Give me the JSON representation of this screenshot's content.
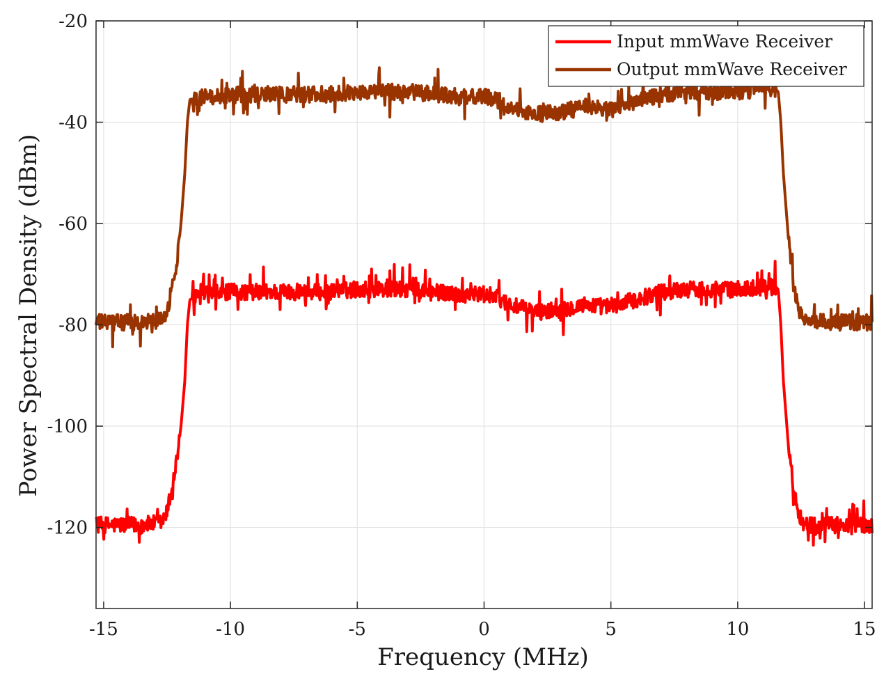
{
  "chart_data": {
    "type": "line",
    "title": "",
    "xlabel": "Frequency (MHz)",
    "ylabel": "Power Spectral Density (dBm)",
    "xlim": [
      -15.3,
      15.3
    ],
    "ylim": [
      -136,
      -20
    ],
    "xticks": [
      -15,
      -10,
      -5,
      0,
      5,
      10,
      15
    ],
    "xtick_labels": [
      "-15",
      "-10",
      "-5",
      "0",
      "5",
      "10",
      "15"
    ],
    "yticks": [
      -120,
      -100,
      -80,
      -60,
      -40,
      -20
    ],
    "ytick_labels": [
      "-120",
      "-100",
      "-80",
      "-60",
      "-40",
      "-20"
    ],
    "grid": true,
    "legend_position": "top-right",
    "series": [
      {
        "name": "Input mmWave Receiver",
        "color": "#ff0000",
        "x": [
          -15.3,
          -14.5,
          -13.5,
          -12.7,
          -12.5,
          -12.3,
          -12.1,
          -11.95,
          -11.8,
          -11.7,
          -11.6,
          -11,
          -10,
          -9,
          -8,
          -7,
          -6,
          -5,
          -4,
          -3,
          -2,
          -1,
          0,
          0.5,
          1,
          2,
          3,
          4,
          5,
          6,
          7,
          8,
          9,
          10,
          11,
          11.5,
          11.6,
          11.7,
          11.8,
          12.0,
          12.2,
          12.4,
          12.6,
          13.5,
          14.5,
          15.3
        ],
        "values": [
          -119.5,
          -119.5,
          -119.5,
          -119,
          -117,
          -112,
          -106,
          -100,
          -91,
          -80,
          -75,
          -74,
          -73.5,
          -73.5,
          -73.5,
          -73.5,
          -73.5,
          -73,
          -73,
          -73,
          -73.5,
          -74,
          -74,
          -74.5,
          -76,
          -77.5,
          -77,
          -76,
          -76.5,
          -75,
          -73.5,
          -73,
          -73,
          -73,
          -72.5,
          -72.5,
          -73,
          -80,
          -91,
          -104,
          -112,
          -117,
          -119.5,
          -119.5,
          -119.5,
          -119.5
        ]
      },
      {
        "name": "Output mmWave Receiver",
        "color": "#993300",
        "x": [
          -15.3,
          -14.5,
          -13.5,
          -12.7,
          -12.5,
          -12.3,
          -12.1,
          -11.95,
          -11.8,
          -11.7,
          -11.6,
          -11,
          -10,
          -9,
          -8,
          -7,
          -6,
          -5,
          -4,
          -3,
          -2,
          -1,
          0,
          0.5,
          1,
          2,
          3,
          4,
          5,
          6,
          7,
          8,
          9,
          10,
          11,
          11.5,
          11.6,
          11.7,
          11.8,
          12.0,
          12.2,
          12.4,
          12.6,
          13.5,
          14.5,
          15.3
        ],
        "values": [
          -79.5,
          -79.5,
          -79.5,
          -79,
          -77,
          -73,
          -67,
          -60,
          -50,
          -40,
          -35.5,
          -35,
          -34.5,
          -34.5,
          -34.5,
          -34.5,
          -34.5,
          -34,
          -34,
          -34,
          -34.5,
          -35,
          -35,
          -35.5,
          -37,
          -38.5,
          -38,
          -37,
          -37.5,
          -36,
          -34.5,
          -34,
          -34,
          -34,
          -33.5,
          -33.5,
          -34,
          -40,
          -50,
          -63,
          -72,
          -77,
          -79.5,
          -79.5,
          -79.5,
          -79.5
        ]
      }
    ]
  }
}
